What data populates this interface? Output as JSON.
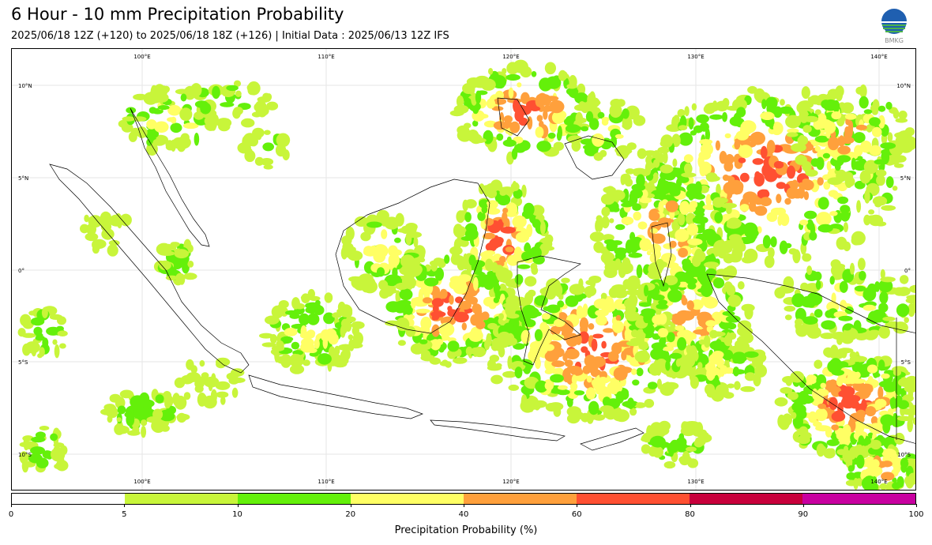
{
  "header": {
    "title": "6 Hour - 10 mm Precipitation Probability",
    "subtitle": "2025/06/18 12Z (+120) to 2025/06/18 18Z (+126) | Initial Data : 2025/06/13 12Z IFS",
    "logo_text": "BMKG"
  },
  "map": {
    "lon_labels_top": [
      "100°E",
      "110°E",
      "120°E",
      "130°E",
      "140°E"
    ],
    "lon_labels_bottom": [
      "100°E",
      "110°E",
      "120°E",
      "130°E",
      "140°E"
    ],
    "lat_labels_left": [
      "10°N",
      "5°N",
      "0°",
      "5°S",
      "10°S"
    ],
    "lat_labels_right": [
      "10°N",
      "5°N",
      "0°",
      "5°S",
      "10°S"
    ]
  },
  "colorbar": {
    "label": "Precipitation Probability (%)",
    "ticks": [
      "0",
      "5",
      "10",
      "20",
      "40",
      "60",
      "80",
      "90",
      "100"
    ],
    "colors": [
      "#ffffff",
      "#c8f53a",
      "#64f00a",
      "#ffff64",
      "#ffa03c",
      "#ff5032",
      "#c8003c",
      "#c800a0"
    ]
  }
}
